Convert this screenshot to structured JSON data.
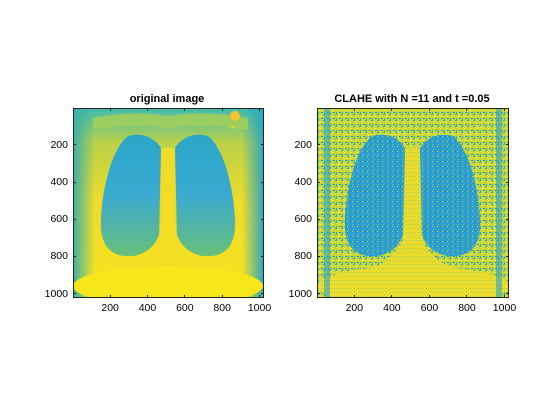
{
  "figure": {
    "panels": [
      {
        "title": "original image",
        "x_ticks": [
          "200",
          "400",
          "600",
          "800",
          "1000"
        ],
        "y_ticks": [
          "200",
          "400",
          "600",
          "800",
          "1000"
        ]
      },
      {
        "title": "CLAHE with N =11 and t =0.05",
        "x_ticks": [
          "200",
          "400",
          "600",
          "800",
          "1000"
        ],
        "y_ticks": [
          "200",
          "400",
          "600",
          "800",
          "1000"
        ]
      }
    ]
  },
  "chart_data": [
    {
      "type": "image",
      "title": "original image",
      "xlim": [
        1,
        1024
      ],
      "ylim": [
        1,
        1024
      ],
      "x_ticks": [
        200,
        400,
        600,
        800,
        1000
      ],
      "y_ticks": [
        200,
        400,
        600,
        800,
        1000
      ],
      "y_direction": "reverse",
      "colormap": "parula",
      "content": "chest x-ray"
    },
    {
      "type": "image",
      "title": "CLAHE with N =11 and t =0.05",
      "xlim": [
        1,
        1024
      ],
      "ylim": [
        1,
        1024
      ],
      "x_ticks": [
        200,
        400,
        600,
        800,
        1000
      ],
      "y_ticks": [
        200,
        400,
        600,
        800,
        1000
      ],
      "y_direction": "reverse",
      "colormap": "parula",
      "content": "chest x-ray"
    }
  ],
  "colors": {
    "parula_yellow": "#f5e21c",
    "parula_green": "#7fc76a",
    "parula_teal": "#2ab8a0",
    "parula_blue": "#1a8fd6",
    "parula_dark": "#3a3ea8"
  }
}
